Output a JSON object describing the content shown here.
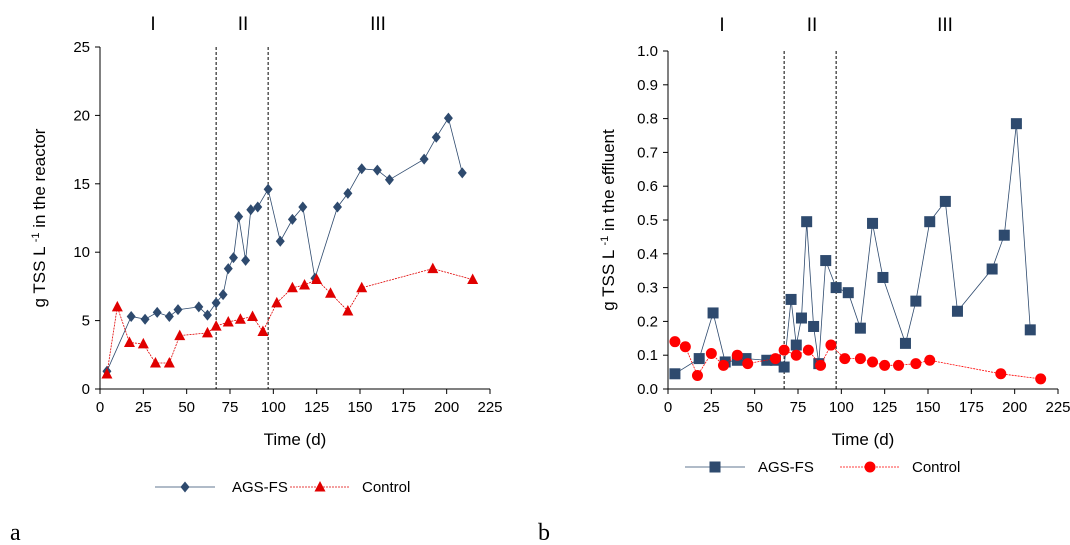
{
  "panel_labels": [
    "a",
    "b"
  ],
  "chart_data": [
    {
      "type": "line",
      "xlabel": "Time (d)",
      "ylabel": "g TSS L-1 in the reactor",
      "xlim": [
        0,
        225
      ],
      "ylim": [
        0,
        25
      ],
      "x_ticks": [
        "0",
        "25",
        "50",
        "75",
        "100",
        "125",
        "150",
        "175",
        "200",
        "225"
      ],
      "y_ticks": [
        "0",
        "5",
        "10",
        "15",
        "20",
        "25"
      ],
      "phases": [
        "I",
        "II",
        "III"
      ],
      "phase_boundaries": [
        67,
        97
      ],
      "legend_position": "bottom",
      "series": [
        {
          "name": "AGS-FS",
          "color": "#2e4a6e",
          "marker": "diamond",
          "x": [
            4,
            18,
            26,
            33,
            40,
            45,
            57,
            62,
            67,
            71,
            74,
            77,
            80,
            84,
            87,
            91,
            97,
            104,
            111,
            117,
            124,
            137,
            143,
            151,
            160,
            167,
            187,
            194,
            201,
            209
          ],
          "y": [
            1.3,
            5.3,
            5.1,
            5.6,
            5.3,
            5.8,
            6.0,
            5.4,
            6.3,
            6.9,
            8.8,
            9.6,
            12.6,
            9.4,
            13.1,
            13.3,
            14.6,
            10.8,
            12.4,
            13.3,
            8.1,
            13.3,
            14.3,
            16.1,
            16.0,
            15.3,
            16.8,
            18.4,
            19.8,
            15.8
          ]
        },
        {
          "name": "Control",
          "color": "#e00000",
          "marker": "triangle",
          "x": [
            4,
            10,
            17,
            25,
            32,
            40,
            46,
            62,
            67,
            74,
            81,
            88,
            94,
            102,
            111,
            118,
            125,
            133,
            143,
            151,
            192,
            215
          ],
          "y": [
            1.1,
            6.0,
            3.4,
            3.3,
            1.9,
            1.9,
            3.9,
            4.1,
            4.6,
            4.9,
            5.1,
            5.3,
            4.2,
            6.3,
            7.4,
            7.6,
            8.0,
            7.0,
            5.7,
            7.4,
            8.8,
            8.0
          ]
        }
      ]
    },
    {
      "type": "line",
      "xlabel": "Time (d)",
      "ylabel": "g TSS L-1 in the effluent",
      "xlim": [
        0,
        225
      ],
      "ylim": [
        0,
        1.0
      ],
      "x_ticks": [
        "0",
        "25",
        "50",
        "75",
        "100",
        "125",
        "150",
        "175",
        "200",
        "225"
      ],
      "y_ticks": [
        "0.0",
        "0.1",
        "0.2",
        "0.3",
        "0.4",
        "0.5",
        "0.6",
        "0.7",
        "0.8",
        "0.9",
        "1.0"
      ],
      "phases": [
        "I",
        "II",
        "III"
      ],
      "phase_boundaries": [
        67,
        97
      ],
      "legend_position": "bottom",
      "series": [
        {
          "name": "AGS-FS",
          "color": "#2e4a6e",
          "marker": "square",
          "x": [
            4,
            18,
            26,
            33,
            40,
            45,
            57,
            62,
            67,
            71,
            74,
            77,
            80,
            84,
            87,
            91,
            97,
            104,
            111,
            118,
            124,
            137,
            143,
            151,
            160,
            167,
            187,
            194,
            201,
            209
          ],
          "y": [
            0.045,
            0.09,
            0.225,
            0.08,
            0.085,
            0.09,
            0.085,
            0.085,
            0.065,
            0.265,
            0.13,
            0.21,
            0.495,
            0.185,
            0.075,
            0.38,
            0.3,
            0.285,
            0.18,
            0.49,
            0.33,
            0.135,
            0.26,
            0.495,
            0.555,
            0.23,
            0.355,
            0.455,
            0.785,
            0.175
          ]
        },
        {
          "name": "Control",
          "color": "#ff0000",
          "marker": "circle",
          "x": [
            4,
            10,
            17,
            25,
            32,
            40,
            46,
            62,
            67,
            74,
            81,
            88,
            94,
            102,
            111,
            118,
            125,
            133,
            143,
            151,
            192,
            215
          ],
          "y": [
            0.14,
            0.125,
            0.04,
            0.105,
            0.07,
            0.1,
            0.075,
            0.09,
            0.115,
            0.1,
            0.115,
            0.07,
            0.13,
            0.09,
            0.09,
            0.08,
            0.07,
            0.07,
            0.075,
            0.085,
            0.045,
            0.03
          ]
        }
      ]
    }
  ]
}
